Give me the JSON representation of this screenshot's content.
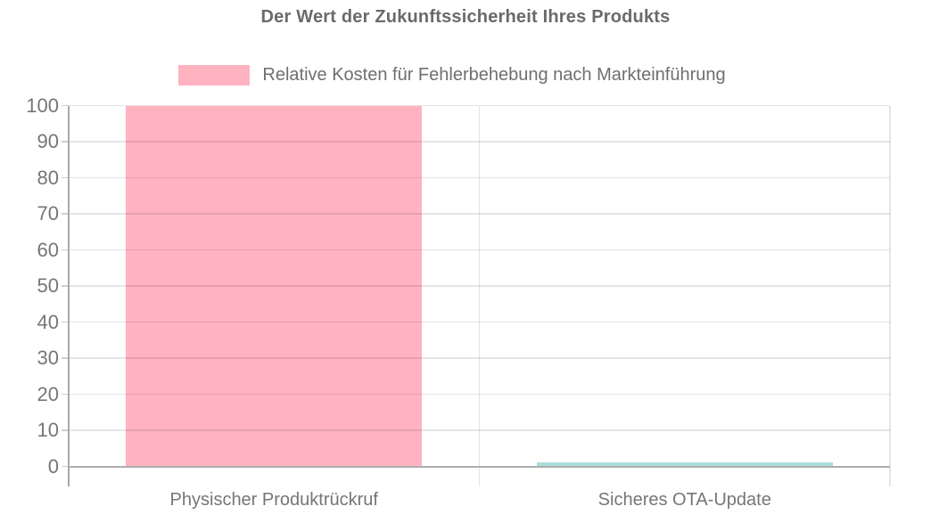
{
  "chart_data": {
    "type": "bar",
    "title": "Der Wert der Zukunftssicherheit Ihres Produkts",
    "legend": {
      "position": "top",
      "entries": [
        {
          "label": "Relative Kosten für Fehlerbehebung nach Markteinführung",
          "swatch_color": "#ffb3c1"
        }
      ]
    },
    "categories": [
      "Physischer Produktrückruf",
      "Sicheres OTA-Update"
    ],
    "series": [
      {
        "name": "Relative Kosten für Fehlerbehebung nach Markteinführung",
        "values": [
          100,
          1
        ]
      }
    ],
    "bar_colors": [
      "#ffb3c1",
      "#a8ddda"
    ],
    "xlabel": "",
    "ylabel": "",
    "ylim": [
      0,
      100
    ],
    "ytick_step": 10,
    "ytick_labels": [
      "0",
      "10",
      "20",
      "30",
      "40",
      "50",
      "60",
      "70",
      "80",
      "90",
      "100"
    ],
    "grid": true
  },
  "colors": {
    "background": "#ffffff",
    "title_text": "#6a6a6a",
    "axis_line": "#a9a9a9",
    "gridline": "#e6e6e6",
    "label_text": "#767676"
  }
}
